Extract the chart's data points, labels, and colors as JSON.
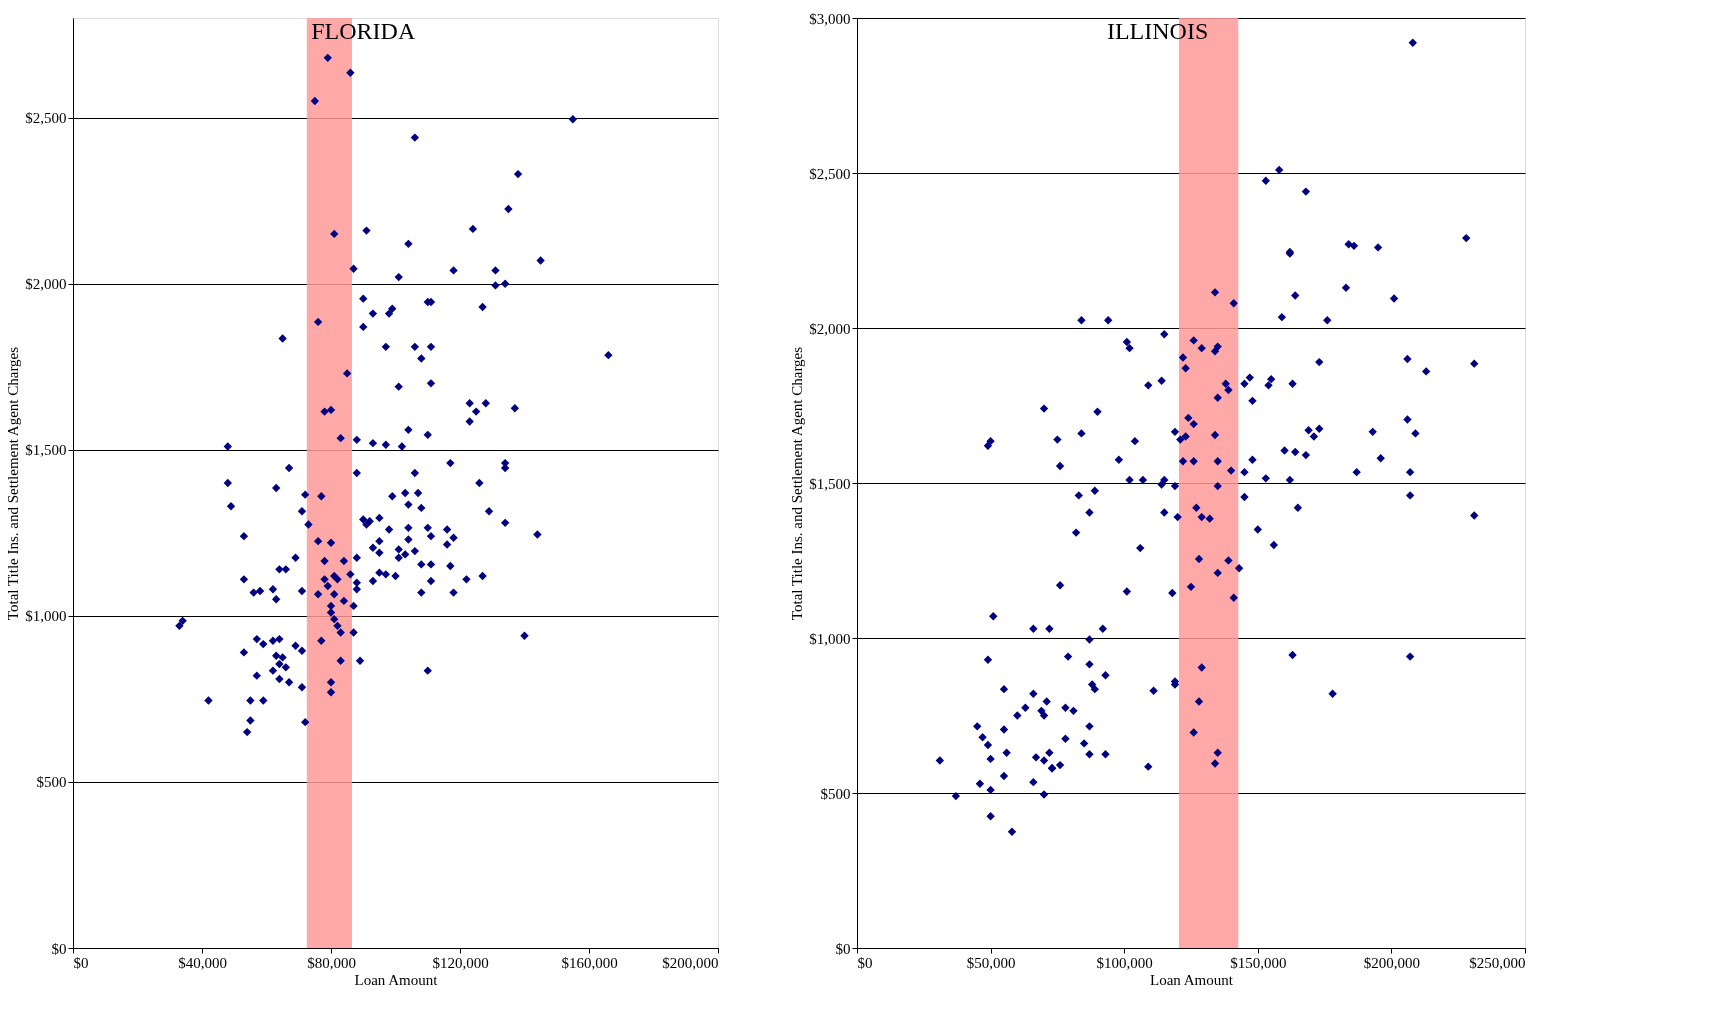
{
  "chart_data": [
    {
      "type": "scatter",
      "title": "FLORIDA",
      "xlabel": "Loan Amount",
      "ylabel": "Total Title Ins. and Settlement Agent Charges",
      "color": "#000080",
      "marker": "diamond",
      "grid": "y",
      "xlim": [
        0,
        200000
      ],
      "ylim": [
        0,
        2800
      ],
      "xticks": [
        {
          "value": 0,
          "label": "$0"
        },
        {
          "value": 40000,
          "label": "$40,000"
        },
        {
          "value": 80000,
          "label": "$80,000"
        },
        {
          "value": 120000,
          "label": "$120,000"
        },
        {
          "value": 160000,
          "label": "$160,000"
        },
        {
          "value": 200000,
          "label": "$200,000"
        }
      ],
      "yticks": [
        {
          "value": 0,
          "label": "$0"
        },
        {
          "value": 500,
          "label": "$500"
        },
        {
          "value": 1000,
          "label": "$1,000"
        },
        {
          "value": 1500,
          "label": "$1,500"
        },
        {
          "value": 2000,
          "label": "$2,000"
        },
        {
          "value": 2500,
          "label": "$2,500"
        }
      ],
      "bands": [
        {
          "axis": "x",
          "from": 72500,
          "to": 86500,
          "color": "#ff9999"
        }
      ],
      "x": [
        79000,
        75000,
        86000,
        155000,
        106000,
        138000,
        135000,
        81000,
        91000,
        124000,
        145000,
        87000,
        104000,
        118000,
        131000,
        101000,
        131000,
        134000,
        90000,
        110000,
        111000,
        99000,
        98000,
        93000,
        127000,
        76000,
        90000,
        65000,
        166000,
        97000,
        106000,
        111000,
        108000,
        85000,
        101000,
        111000,
        123000,
        128000,
        125000,
        123000,
        137000,
        78000,
        80000,
        48000,
        83000,
        88000,
        93000,
        97000,
        102000,
        104000,
        110000,
        117000,
        134000,
        134000,
        67000,
        88000,
        48000,
        106000,
        126000,
        63000,
        72000,
        77000,
        99000,
        103000,
        107000,
        49000,
        104000,
        108000,
        129000,
        71000,
        90000,
        92000,
        95000,
        91000,
        73000,
        134000,
        98000,
        104000,
        110000,
        116000,
        53000,
        144000,
        111000,
        118000,
        95000,
        76000,
        80000,
        104000,
        116000,
        93000,
        101000,
        103000,
        95000,
        88000,
        84000,
        101000,
        106000,
        69000,
        78000,
        108000,
        111000,
        117000,
        66000,
        64000,
        86000,
        95000,
        97000,
        100000,
        127000,
        53000,
        111000,
        122000,
        81000,
        82000,
        88000,
        78000,
        93000,
        88000,
        79000,
        71000,
        58000,
        56000,
        62000,
        76000,
        81000,
        108000,
        118000,
        84000,
        63000,
        80000,
        87000,
        34000,
        33000,
        80000,
        81000,
        82000,
        83000,
        87000,
        57000,
        64000,
        62000,
        59000,
        69000,
        77000,
        140000,
        53000,
        63000,
        71000,
        65000,
        83000,
        89000,
        64000,
        66000,
        62000,
        110000,
        57000,
        64000,
        67000,
        80000,
        71000,
        80000,
        42000,
        55000,
        59000,
        55000,
        72000,
        54000
      ],
      "values": [
        2680,
        2550,
        2635,
        2495,
        2440,
        2330,
        2225,
        2150,
        2160,
        2165,
        2070,
        2045,
        2120,
        2040,
        2040,
        2020,
        1995,
        2000,
        1955,
        1945,
        1945,
        1925,
        1910,
        1910,
        1930,
        1885,
        1870,
        1835,
        1785,
        1810,
        1810,
        1810,
        1775,
        1730,
        1690,
        1700,
        1640,
        1640,
        1615,
        1585,
        1625,
        1615,
        1620,
        1510,
        1535,
        1530,
        1520,
        1515,
        1510,
        1560,
        1545,
        1460,
        1460,
        1445,
        1445,
        1430,
        1400,
        1430,
        1400,
        1385,
        1365,
        1360,
        1360,
        1370,
        1370,
        1330,
        1335,
        1325,
        1315,
        1315,
        1290,
        1285,
        1295,
        1275,
        1275,
        1280,
        1260,
        1265,
        1265,
        1260,
        1240,
        1245,
        1240,
        1235,
        1225,
        1225,
        1220,
        1230,
        1215,
        1205,
        1200,
        1185,
        1190,
        1175,
        1165,
        1175,
        1195,
        1175,
        1165,
        1155,
        1155,
        1150,
        1140,
        1140,
        1125,
        1130,
        1125,
        1120,
        1120,
        1110,
        1105,
        1110,
        1120,
        1110,
        1100,
        1110,
        1105,
        1080,
        1090,
        1075,
        1075,
        1070,
        1080,
        1065,
        1065,
        1070,
        1070,
        1045,
        1050,
        1030,
        1030,
        985,
        970,
        1010,
        990,
        970,
        950,
        950,
        930,
        930,
        925,
        915,
        910,
        925,
        940,
        890,
        880,
        895,
        875,
        865,
        865,
        855,
        845,
        835,
        835,
        820,
        810,
        800,
        800,
        785,
        770,
        745,
        745,
        745,
        685,
        680,
        650
      ]
    },
    {
      "type": "scatter",
      "title": "ILLINOIS",
      "xlabel": "Loan Amount",
      "ylabel": "Total Title Ins. and Settlement Agent Charges",
      "color": "#000080",
      "marker": "diamond",
      "grid": "y",
      "xlim": [
        0,
        250000
      ],
      "ylim": [
        0,
        3000
      ],
      "xticks": [
        {
          "value": 0,
          "label": "$0"
        },
        {
          "value": 50000,
          "label": "$50,000"
        },
        {
          "value": 100000,
          "label": "$100,000"
        },
        {
          "value": 150000,
          "label": "$150,000"
        },
        {
          "value": 200000,
          "label": "$200,000"
        },
        {
          "value": 250000,
          "label": "$250,000"
        }
      ],
      "yticks": [
        {
          "value": 0,
          "label": "$0"
        },
        {
          "value": 500,
          "label": "$500"
        },
        {
          "value": 1000,
          "label": "$1,000"
        },
        {
          "value": 1500,
          "label": "$1,500"
        },
        {
          "value": 2000,
          "label": "$2,000"
        },
        {
          "value": 2500,
          "label": "$2,500"
        },
        {
          "value": 3000,
          "label": "$3,000"
        }
      ],
      "bands": [
        {
          "axis": "x",
          "from": 120500,
          "to": 142700,
          "color": "#ff9999"
        }
      ],
      "x": [
        208000,
        158000,
        153000,
        168000,
        228000,
        184000,
        186000,
        195000,
        162000,
        162000,
        183000,
        134000,
        164000,
        141000,
        201000,
        159000,
        176000,
        84000,
        94000,
        115000,
        122000,
        101000,
        102000,
        126000,
        129000,
        135000,
        134000,
        206000,
        173000,
        231000,
        213000,
        123000,
        114000,
        109000,
        155000,
        147000,
        145000,
        154000,
        163000,
        138000,
        139000,
        135000,
        148000,
        70000,
        90000,
        169000,
        173000,
        171000,
        206000,
        209000,
        193000,
        119000,
        123000,
        121000,
        134000,
        104000,
        84000,
        75000,
        50000,
        49000,
        124000,
        126000,
        160000,
        164000,
        168000,
        187000,
        196000,
        207000,
        148000,
        98000,
        135000,
        122000,
        126000,
        76000,
        140000,
        145000,
        153000,
        102000,
        107000,
        115000,
        162000,
        89000,
        114000,
        119000,
        135000,
        145000,
        83000,
        207000,
        165000,
        231000,
        87000,
        115000,
        127000,
        129000,
        132000,
        120000,
        150000,
        82000,
        156000,
        106000,
        139000,
        128000,
        143000,
        135000,
        76000,
        125000,
        118000,
        101000,
        141000,
        66000,
        72000,
        51000,
        92000,
        87000,
        79000,
        49000,
        163000,
        207000,
        87000,
        93000,
        129000,
        178000,
        111000,
        88000,
        89000,
        119000,
        119000,
        55000,
        66000,
        71000,
        128000,
        63000,
        69000,
        78000,
        81000,
        60000,
        70000,
        45000,
        55000,
        87000,
        126000,
        47000,
        49000,
        78000,
        85000,
        56000,
        72000,
        67000,
        93000,
        87000,
        135000,
        50000,
        31000,
        70000,
        76000,
        73000,
        109000,
        134000,
        73000,
        66000,
        55000,
        46000,
        50000,
        70000,
        37000,
        50000,
        58000
      ],
      "values": [
        2920,
        2510,
        2475,
        2440,
        2290,
        2270,
        2265,
        2260,
        2245,
        2240,
        2130,
        2115,
        2105,
        2080,
        2095,
        2035,
        2025,
        2025,
        2025,
        1980,
        1905,
        1955,
        1935,
        1960,
        1935,
        1940,
        1925,
        1900,
        1890,
        1885,
        1860,
        1870,
        1830,
        1815,
        1835,
        1840,
        1820,
        1815,
        1820,
        1820,
        1800,
        1775,
        1765,
        1740,
        1730,
        1670,
        1675,
        1650,
        1705,
        1660,
        1665,
        1665,
        1650,
        1640,
        1655,
        1635,
        1660,
        1640,
        1635,
        1620,
        1710,
        1690,
        1605,
        1600,
        1590,
        1535,
        1580,
        1535,
        1575,
        1575,
        1570,
        1570,
        1570,
        1555,
        1540,
        1535,
        1515,
        1510,
        1510,
        1510,
        1510,
        1475,
        1495,
        1490,
        1490,
        1455,
        1460,
        1460,
        1420,
        1395,
        1405,
        1405,
        1420,
        1390,
        1385,
        1390,
        1350,
        1340,
        1300,
        1290,
        1250,
        1255,
        1225,
        1210,
        1170,
        1165,
        1145,
        1150,
        1130,
        1030,
        1030,
        1070,
        1030,
        995,
        940,
        930,
        945,
        940,
        915,
        880,
        905,
        820,
        830,
        850,
        835,
        860,
        850,
        835,
        820,
        795,
        795,
        775,
        765,
        775,
        765,
        750,
        750,
        715,
        705,
        715,
        695,
        680,
        655,
        675,
        660,
        630,
        630,
        615,
        625,
        625,
        630,
        610,
        605,
        605,
        590,
        580,
        585,
        595,
        580,
        535,
        555,
        530,
        510,
        495,
        490,
        425,
        375
      ]
    }
  ]
}
